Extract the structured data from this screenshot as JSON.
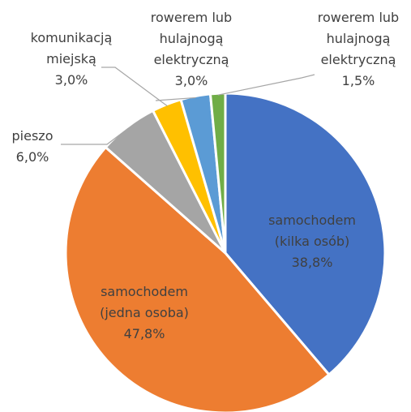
{
  "chart_data": {
    "type": "pie",
    "categories": [
      [
        "samochodem",
        "(kilka osób)"
      ],
      [
        "samochodem",
        "(jedna osoba)"
      ],
      [
        "pieszo"
      ],
      [
        "komunikacją",
        "miejską"
      ],
      [
        "rowerem lub",
        "hulajnogą",
        "elektryczną"
      ],
      [
        "rowerem lub",
        "hulajnogą",
        "elektryczną"
      ]
    ],
    "values": [
      38.8,
      47.8,
      6.0,
      3.0,
      3.0,
      1.5
    ],
    "value_labels": [
      "38,8%",
      "47,8%",
      "6,0%",
      "3,0%",
      "3,0%",
      "1,5%"
    ],
    "colors": [
      "#4472c4",
      "#ed7d31",
      "#a5a5a5",
      "#ffc000",
      "#5b9bd5",
      "#70ad47"
    ]
  }
}
